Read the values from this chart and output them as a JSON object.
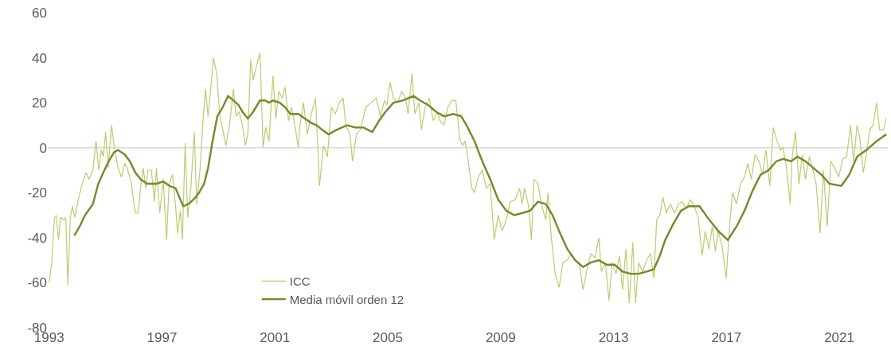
{
  "chart_data": {
    "type": "line",
    "xlim": [
      1992.95,
      2022.72
    ],
    "ylim": [
      -80,
      60
    ],
    "xticks": [
      1993,
      1997,
      2001,
      2005,
      2009,
      2013,
      2017,
      2021
    ],
    "yticks": [
      -80,
      -60,
      -40,
      -20,
      0,
      20,
      40,
      60
    ],
    "grid": false,
    "legend": "bottom",
    "ref_lines": [
      {
        "axis": "y",
        "value": 0,
        "color": "#d9d9d9"
      }
    ],
    "series": [
      {
        "name": "ICC",
        "color": "#b7cf6e",
        "x": [
          1993.0,
          1993.09,
          1993.19,
          1993.25,
          1993.33,
          1993.4,
          1993.52,
          1993.59,
          1993.66,
          1993.75,
          1993.82,
          1993.91,
          1994.03,
          1994.17,
          1994.31,
          1994.41,
          1994.55,
          1994.66,
          1994.76,
          1994.85,
          1994.92,
          1995.0,
          1995.09,
          1995.21,
          1995.3,
          1995.44,
          1995.56,
          1995.68,
          1995.77,
          1995.91,
          1996.05,
          1996.15,
          1996.24,
          1996.33,
          1996.43,
          1996.5,
          1996.62,
          1996.73,
          1996.8,
          1996.92,
          1997.04,
          1997.16,
          1997.25,
          1997.37,
          1997.48,
          1997.55,
          1997.65,
          1997.72,
          1997.82,
          1997.91,
          1998.02,
          1998.14,
          1998.23,
          1998.35,
          1998.45,
          1998.54,
          1998.63,
          1998.73,
          1998.82,
          1998.94,
          1999.04,
          1999.15,
          1999.26,
          1999.39,
          1999.53,
          1999.62,
          1999.73,
          1999.85,
          1999.95,
          2000.04,
          2000.14,
          2000.23,
          2000.32,
          2000.47,
          2000.58,
          2000.67,
          2000.79,
          2000.93,
          2001.03,
          2001.14,
          2001.26,
          2001.36,
          2001.48,
          2001.59,
          2001.73,
          2001.83,
          2001.87,
          2002.01,
          2002.15,
          2002.29,
          2002.44,
          2002.58,
          2002.72,
          2002.86,
          2003.0,
          2003.14,
          2003.28,
          2003.42,
          2003.51,
          2003.66,
          2003.75,
          2003.89,
          2004.03,
          2004.22,
          2004.41,
          2004.59,
          2004.74,
          2004.88,
          2004.97,
          2005.08,
          2005.2,
          2005.35,
          2005.49,
          2005.63,
          2005.72,
          2005.86,
          2005.96,
          2006.1,
          2006.19,
          2006.33,
          2006.47,
          2006.61,
          2006.75,
          2006.85,
          2006.99,
          2007.13,
          2007.27,
          2007.41,
          2007.55,
          2007.65,
          2007.74,
          2007.83,
          2007.98,
          2008.07,
          2008.21,
          2008.35,
          2008.49,
          2008.63,
          2008.77,
          2008.91,
          2009.05,
          2009.2,
          2009.34,
          2009.52,
          2009.67,
          2009.76,
          2009.85,
          2009.99,
          2010.09,
          2010.18,
          2010.32,
          2010.46,
          2010.6,
          2010.68,
          2010.79,
          2010.93,
          2011.07,
          2011.21,
          2011.36,
          2011.5,
          2011.64,
          2011.78,
          2011.92,
          2012.06,
          2012.2,
          2012.34,
          2012.48,
          2012.57,
          2012.71,
          2012.84,
          2012.95,
          2013.09,
          2013.21,
          2013.32,
          2013.44,
          2013.56,
          2013.68,
          2013.78,
          2013.89,
          2014.03,
          2014.17,
          2014.31,
          2014.43,
          2014.53,
          2014.64,
          2014.75,
          2014.87,
          2015.01,
          2015.16,
          2015.3,
          2015.44,
          2015.58,
          2015.72,
          2015.86,
          2016.0,
          2016.14,
          2016.25,
          2016.38,
          2016.5,
          2016.61,
          2016.71,
          2016.85,
          2016.99,
          2017.13,
          2017.22,
          2017.36,
          2017.5,
          2017.64,
          2017.76,
          2017.88,
          2018.02,
          2018.16,
          2018.28,
          2018.4,
          2018.54,
          2018.66,
          2018.77,
          2018.91,
          2019.01,
          2019.13,
          2019.26,
          2019.33,
          2019.45,
          2019.57,
          2019.69,
          2019.8,
          2019.94,
          2020.07,
          2020.18,
          2020.32,
          2020.44,
          2020.57,
          2020.7,
          2020.84,
          2020.98,
          2021.12,
          2021.26,
          2021.4,
          2021.51,
          2021.63,
          2021.73,
          2021.85,
          2021.96,
          2022.08,
          2022.2,
          2022.32,
          2022.43,
          2022.57,
          2022.67
        ],
        "values": [
          -60,
          -51,
          -31,
          -30,
          -41,
          -31,
          -32,
          -31,
          -61,
          -31,
          -26,
          -31,
          -23,
          -16,
          -11,
          -14,
          -10,
          3,
          -10,
          -1,
          -4,
          7,
          -9,
          10,
          1,
          -9,
          -13,
          -7,
          -9,
          -16,
          -29,
          -29,
          -18,
          -9,
          -18,
          -10,
          -10,
          -24,
          -9,
          -29,
          -14,
          -41,
          -16,
          -12,
          -26,
          -38,
          -28,
          -41,
          2,
          -31,
          -18,
          7,
          -25,
          -9,
          12,
          26,
          14,
          27,
          40,
          33,
          15,
          8,
          1,
          10,
          26,
          14,
          16,
          10,
          1,
          6,
          39,
          30,
          35,
          42,
          0,
          9,
          3,
          32,
          13,
          25,
          22,
          27,
          12,
          18,
          8,
          0,
          8,
          20,
          6,
          15,
          22,
          -17,
          1,
          -4,
          18,
          15,
          20,
          22,
          10,
          6,
          -6,
          6,
          8,
          18,
          20,
          22,
          14,
          21,
          19,
          29,
          22,
          20,
          25,
          22,
          15,
          33,
          15,
          20,
          8,
          18,
          22,
          12,
          16,
          12,
          10,
          18,
          21,
          21,
          4,
          1,
          3,
          -4,
          -18,
          -20,
          -13,
          -10,
          -18,
          -16,
          -41,
          -30,
          -37,
          -32,
          -24,
          -23,
          -18,
          -25,
          -18,
          -26,
          -41,
          -14,
          -16,
          -26,
          -32,
          -20,
          -39,
          -56,
          -62,
          -51,
          -50,
          -47,
          -50,
          -51,
          -63,
          -54,
          -47,
          -49,
          -40,
          -55,
          -51,
          -68,
          -51,
          -56,
          -48,
          -63,
          -45,
          -69,
          -42,
          -69,
          -51,
          -55,
          -50,
          -47,
          -58,
          -32,
          -30,
          -22,
          -29,
          -25,
          -29,
          -25,
          -24,
          -27,
          -23,
          -26,
          -31,
          -48,
          -37,
          -45,
          -35,
          -46,
          -37,
          -44,
          -58,
          -32,
          -20,
          -25,
          -16,
          -13,
          -7,
          -14,
          -3,
          -6,
          -12,
          -1,
          -17,
          9,
          4,
          -1,
          0,
          -9,
          -25,
          -4,
          7,
          -16,
          -3,
          -14,
          -4,
          -10,
          -16,
          -38,
          -10,
          -35,
          -6,
          -9,
          -13,
          -5,
          -4,
          10,
          -6,
          10,
          4,
          -11,
          -3,
          8,
          10,
          20,
          8,
          8,
          13
        ]
      },
      {
        "name": "Media móvil orden 12",
        "color": "#6f8c2a",
        "x": [
          1993.89,
          1994.08,
          1994.27,
          1994.55,
          1994.74,
          1994.92,
          1995.11,
          1995.3,
          1995.44,
          1995.68,
          1995.86,
          1996.05,
          1996.24,
          1996.47,
          1996.8,
          1997.04,
          1997.27,
          1997.48,
          1997.75,
          1997.93,
          1998.12,
          1998.31,
          1998.49,
          1998.63,
          1998.79,
          1998.96,
          1999.15,
          1999.34,
          1999.53,
          1999.71,
          1999.85,
          2000.04,
          2000.23,
          2000.47,
          2000.65,
          2000.79,
          2000.93,
          2001.17,
          2001.36,
          2001.55,
          2001.83,
          2002.06,
          2002.29,
          2002.48,
          2002.67,
          2002.9,
          2003.19,
          2003.56,
          2003.84,
          2004.13,
          2004.45,
          2004.69,
          2004.92,
          2005.2,
          2005.53,
          2005.91,
          2006.14,
          2006.43,
          2006.71,
          2006.99,
          2007.32,
          2007.6,
          2007.79,
          2008.07,
          2008.35,
          2008.63,
          2008.91,
          2009.2,
          2009.48,
          2009.76,
          2010.04,
          2010.32,
          2010.6,
          2010.84,
          2011.07,
          2011.36,
          2011.64,
          2011.92,
          2012.2,
          2012.48,
          2012.76,
          2013.04,
          2013.32,
          2013.61,
          2013.89,
          2014.17,
          2014.43,
          2014.64,
          2014.83,
          2015.11,
          2015.39,
          2015.67,
          2016.05,
          2016.33,
          2016.71,
          2017.05,
          2017.36,
          2017.64,
          2017.93,
          2018.21,
          2018.49,
          2018.77,
          2019.01,
          2019.29,
          2019.52,
          2019.8,
          2020.08,
          2020.37,
          2020.65,
          2021.07,
          2021.35,
          2021.63,
          2021.96,
          2022.33,
          2022.67
        ],
        "values": [
          -39,
          -35,
          -30,
          -25,
          -16,
          -11,
          -6,
          -2,
          -1,
          -3,
          -6,
          -11,
          -14,
          -16,
          -16,
          -15,
          -17,
          -18,
          -26,
          -25,
          -23,
          -20,
          -16,
          -9,
          3,
          14,
          18,
          23,
          21,
          19,
          16,
          13,
          16,
          21,
          21,
          20,
          21,
          20,
          18,
          15,
          15,
          13,
          11,
          10,
          8,
          6,
          8,
          10,
          9,
          9,
          7,
          12,
          16,
          20,
          21,
          23,
          21,
          19,
          16,
          14,
          15,
          14,
          10,
          3,
          -6,
          -14,
          -23,
          -28,
          -30,
          -29,
          -28,
          -24,
          -25,
          -30,
          -37,
          -45,
          -50,
          -53,
          -51,
          -50,
          -52,
          -52,
          -55,
          -56,
          -56,
          -55,
          -54,
          -48,
          -41,
          -34,
          -28,
          -26,
          -26,
          -31,
          -37,
          -41,
          -35,
          -28,
          -19,
          -12,
          -10,
          -6,
          -5,
          -6,
          -4,
          -6,
          -9,
          -12,
          -16,
          -17,
          -12,
          -4,
          -1,
          3,
          6
        ]
      }
    ]
  }
}
